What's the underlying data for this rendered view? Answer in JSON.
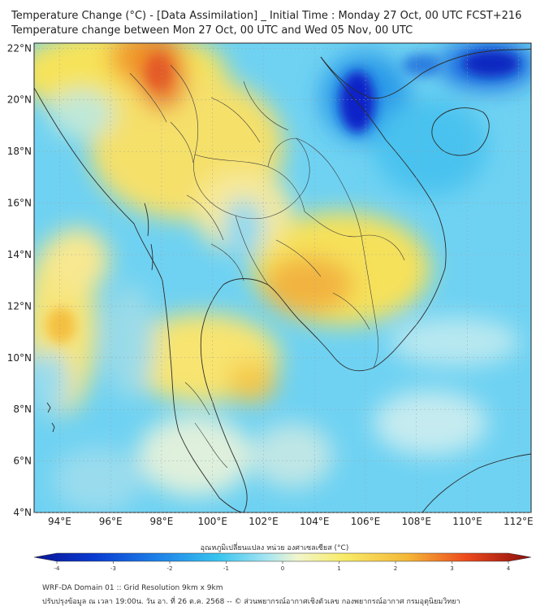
{
  "header": {
    "title_line1": "Temperature Change (°C) - [Data Assimilation] _ Initial Time : Monday 27 Oct, 00 UTC FCST+216",
    "title_line2": "Temperature change between Mon 27 Oct, 00 UTC and Wed 05 Nov, 00 UTC"
  },
  "axes": {
    "lat_labels": [
      "22°N",
      "20°N",
      "18°N",
      "16°N",
      "14°N",
      "12°N",
      "10°N",
      "8°N",
      "6°N",
      "4°N"
    ],
    "lat_values": [
      22,
      20,
      18,
      16,
      14,
      12,
      10,
      8,
      6,
      4
    ],
    "lon_labels": [
      "94°E",
      "96°E",
      "98°E",
      "100°E",
      "102°E",
      "104°E",
      "106°E",
      "108°E",
      "110°E",
      "112°E"
    ],
    "lon_values": [
      94,
      96,
      98,
      100,
      102,
      104,
      106,
      108,
      110,
      112
    ],
    "lon_range": [
      93,
      112.5
    ],
    "lat_range": [
      4,
      22.2
    ],
    "grid": true
  },
  "colorbar": {
    "title": "อุณหภูมิเปลี่ยนแปลง หน่วย องศาเซลเซียส (°C)",
    "ticks": [
      "-4",
      "-3",
      "-2",
      "-1",
      "0",
      "1",
      "2",
      "3",
      "4"
    ],
    "tick_values": [
      -4,
      -3,
      -2,
      -1,
      0,
      1,
      2,
      3,
      4
    ],
    "range": [
      -4,
      4
    ]
  },
  "footer": {
    "line1": "WRF-DA Domain 01 :: Grid Resolution 9km x 9km",
    "line2": "ปรับปรุงข้อมูล ณ เวลา 19:00น. วัน อา. ที่ 26 ต.ค. 2568 -- © ส่วนพยากรณ์อากาศเชิงตัวเลข กองพยากรณ์อากาศ กรมอุตุนิยมวิทยา"
  },
  "colors": {
    "cold_strong": "#0a1ebe",
    "cold": "#2fb6ee",
    "cool": "#8fdcf3",
    "neutral": "#eef6d8",
    "warm": "#f7e35a",
    "hot": "#f3a52a",
    "very_hot": "#e8622a"
  }
}
